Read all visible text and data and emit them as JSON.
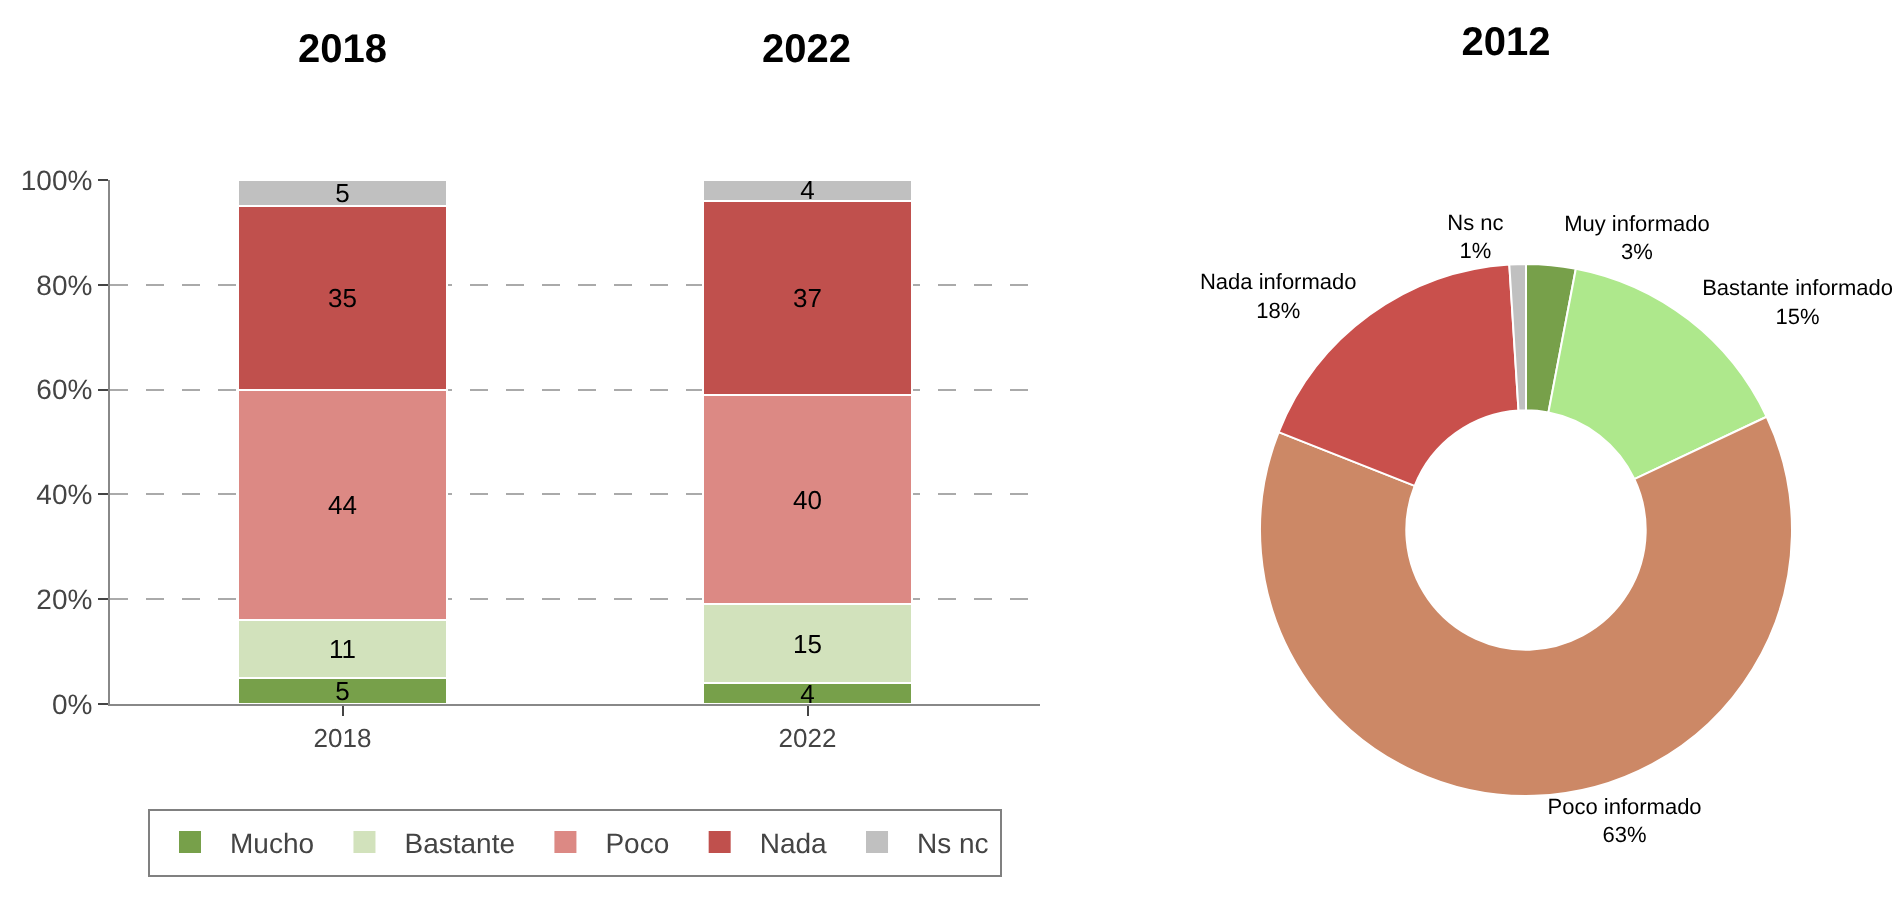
{
  "chart_data": [
    {
      "type": "bar",
      "stacked": true,
      "categories": [
        "2018",
        "2022"
      ],
      "series": [
        {
          "name": "Mucho",
          "color": "#77a04a",
          "values": [
            5,
            4
          ]
        },
        {
          "name": "Bastante",
          "color": "#d2e2bc",
          "values": [
            11,
            15
          ]
        },
        {
          "name": "Poco",
          "color": "#dc8984",
          "values": [
            44,
            40
          ]
        },
        {
          "name": "Nada",
          "color": "#c0504d",
          "values": [
            35,
            37
          ]
        },
        {
          "name": "Ns nc",
          "color": "#c0c0c0",
          "values": [
            5,
            4
          ]
        }
      ],
      "ylim": [
        0,
        100
      ],
      "yticks": [
        {
          "value": 0,
          "label": "0%"
        },
        {
          "value": 20,
          "label": "20%"
        },
        {
          "value": 40,
          "label": "40%"
        },
        {
          "value": 60,
          "label": "60%"
        },
        {
          "value": 80,
          "label": "80%"
        },
        {
          "value": 100,
          "label": "100%"
        }
      ],
      "annotations": [
        "2018",
        "2022"
      ],
      "grid": "y",
      "legend": "bottom",
      "data_labels": true
    },
    {
      "type": "donut",
      "title": "2012",
      "categories": [
        "Muy informado",
        "Bastante informado",
        "Poco informado",
        "Nada informado",
        "Ns nc"
      ],
      "values": [
        3,
        15,
        63,
        18,
        1
      ],
      "value_labels": [
        "3%",
        "15%",
        "63%",
        "18%",
        "1%"
      ],
      "colors": [
        "#77a04a",
        "#aee88c",
        "#cc8866",
        "#c9504c",
        "#c0c0c0"
      ]
    }
  ]
}
